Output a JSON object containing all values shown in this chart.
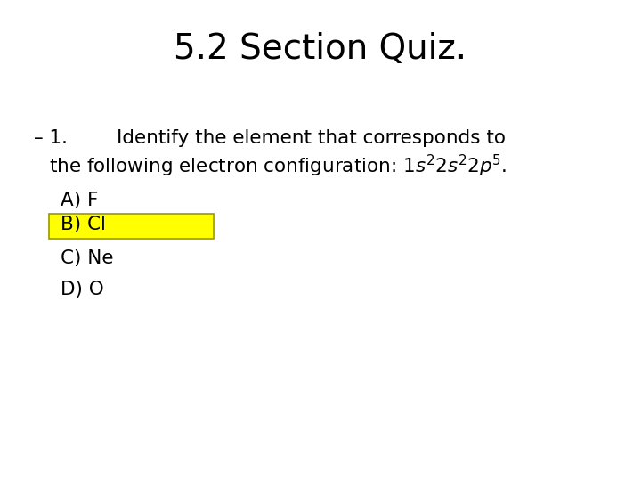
{
  "title": "5.2 Section Quiz.",
  "title_fontsize": 28,
  "background_color": "#ffffff",
  "text_color": "#000000",
  "highlight_color": "#ffff00",
  "highlight_edge_color": "#999900",
  "q_line1": "– 1.        Identify the element that corresponds to",
  "q_line2_prefix": "the following electron configuration: 1",
  "q_line2_suffix": ".",
  "answer_A": "A) F",
  "answer_B": "B) Cl",
  "answer_C": "C) Ne",
  "answer_D": "D) O",
  "body_fontsize": 15.5
}
